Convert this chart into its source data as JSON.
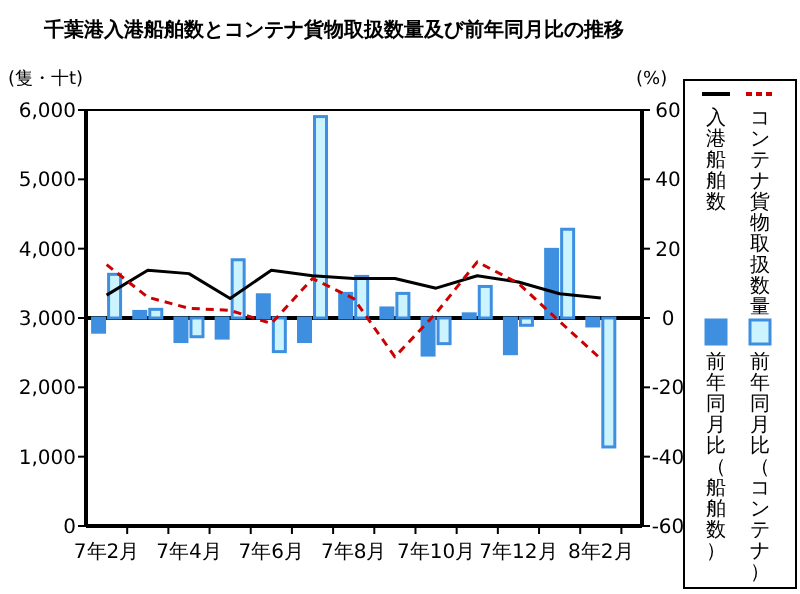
{
  "chart_data": {
    "type": "bar",
    "title": "千葉港入港船舶数とコンテナ貨物取扱数量及び前年同月比の推移",
    "ylabel": "(隻・十t)",
    "y2label": "(%)",
    "categories": [
      "7年2月",
      null,
      "7年4月",
      null,
      "7年6月",
      null,
      "7年8月",
      null,
      "7年10月",
      null,
      "7年12月",
      null,
      "8年2月"
    ],
    "series": [
      {
        "name": "入港船舶数",
        "type": "line",
        "color": "#000000",
        "line_style": "solid",
        "values": [
          3330,
          3690,
          3640,
          3280,
          3690,
          3610,
          3570,
          3570,
          3430,
          3610,
          3520,
          3350,
          3290
        ]
      },
      {
        "name": "コンテナ貨物取扱数量",
        "type": "line",
        "color": "#cc0000",
        "line_style": "dashed",
        "values": [
          3770,
          3300,
          3140,
          3110,
          2920,
          3570,
          3280,
          2440,
          3070,
          3810,
          3500,
          2950,
          2410
        ]
      },
      {
        "name": "前年同月比（船舶数）",
        "axis": "y2",
        "color": "#3f8fe0",
        "values": [
          -4.1,
          1.9,
          -6.8,
          -5.8,
          6.7,
          -6.8,
          7.1,
          2.9,
          -10.7,
          1.2,
          -10.3,
          19.8,
          -2.3
        ]
      },
      {
        "name": "前年同月比（コンテナ）",
        "axis": "y2",
        "color": "#3f8fe0",
        "values": [
          12.6,
          2.5,
          -5.4,
          16.8,
          -9.7,
          58.1,
          12,
          7.1,
          -7.4,
          9.1,
          -2.1,
          25.6,
          -37.2
        ]
      }
    ],
    "ylim": [
      0,
      6000
    ],
    "yticks": [
      0,
      {
        "value": 1000,
        "label": "1,000"
      },
      {
        "value": 2000,
        "label": "2,000"
      },
      {
        "value": 3000,
        "label": "3,000"
      },
      {
        "value": 4000,
        "label": "4,000"
      },
      {
        "value": 5000,
        "label": "5,000"
      },
      {
        "value": 6000,
        "label": "6,000"
      }
    ],
    "y2lim": [
      -60,
      60
    ],
    "y2ticks": [
      -60,
      -40,
      -20,
      0,
      20,
      40,
      60
    ],
    "ref_lines": [
      {
        "axis": "y2",
        "value": 0,
        "color": "#000000"
      }
    ],
    "legend": "right",
    "grid": false
  }
}
